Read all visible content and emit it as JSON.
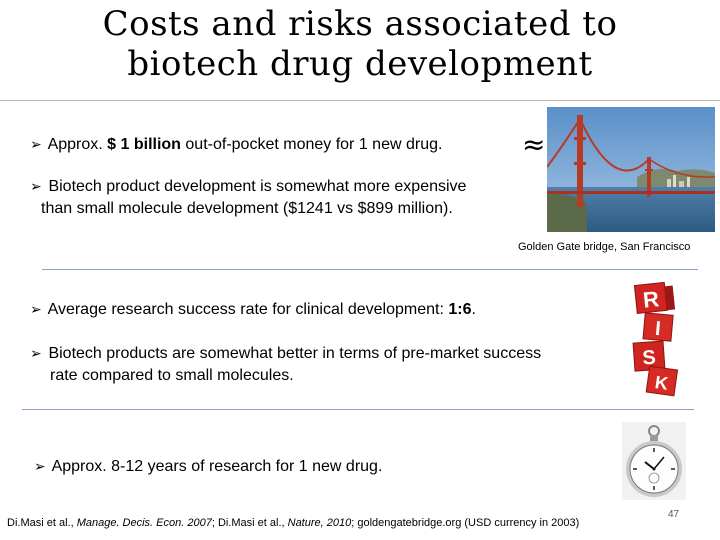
{
  "title": {
    "line1": "Costs and risks associated to",
    "line2": "biotech drug development"
  },
  "bullets": {
    "b1_pre": "Approx.",
    "b1_bold": "$ 1 billion",
    "b1_post": "out-of-pocket money for 1 new drug.",
    "approx_symbol": "≈",
    "b2_line1": "Biotech product development is somewhat more expensive",
    "b2_line2": "than small molecule development ($1241 vs $899 million).",
    "b3_pre": "Average research success rate for clinical development:",
    "b3_bold": "1:6",
    "b3_post": ".",
    "b4_line1": "Biotech products are somewhat better in terms of pre-market success",
    "b4_line2": "rate compared to small molecules.",
    "b5": "Approx. 8-12 years of research for 1 new drug."
  },
  "images": {
    "bridge_caption": "Golden Gate bridge, San Francisco",
    "risk_letters": [
      "R",
      "I",
      "S",
      "K"
    ]
  },
  "footer": {
    "a1": "Di.Masi et al., ",
    "a2": "Manage. Decis. Econ. 2007",
    "a3": "; Di.Masi et al., ",
    "a4": "Nature, 2010",
    "a5": "; goldengatebridge.org (USD currency in 2003)"
  },
  "page_number": "47",
  "colors": {
    "divider": "#8aa0c8",
    "risk_red": "#c8201e",
    "bridge_orange": "#c0392b"
  }
}
